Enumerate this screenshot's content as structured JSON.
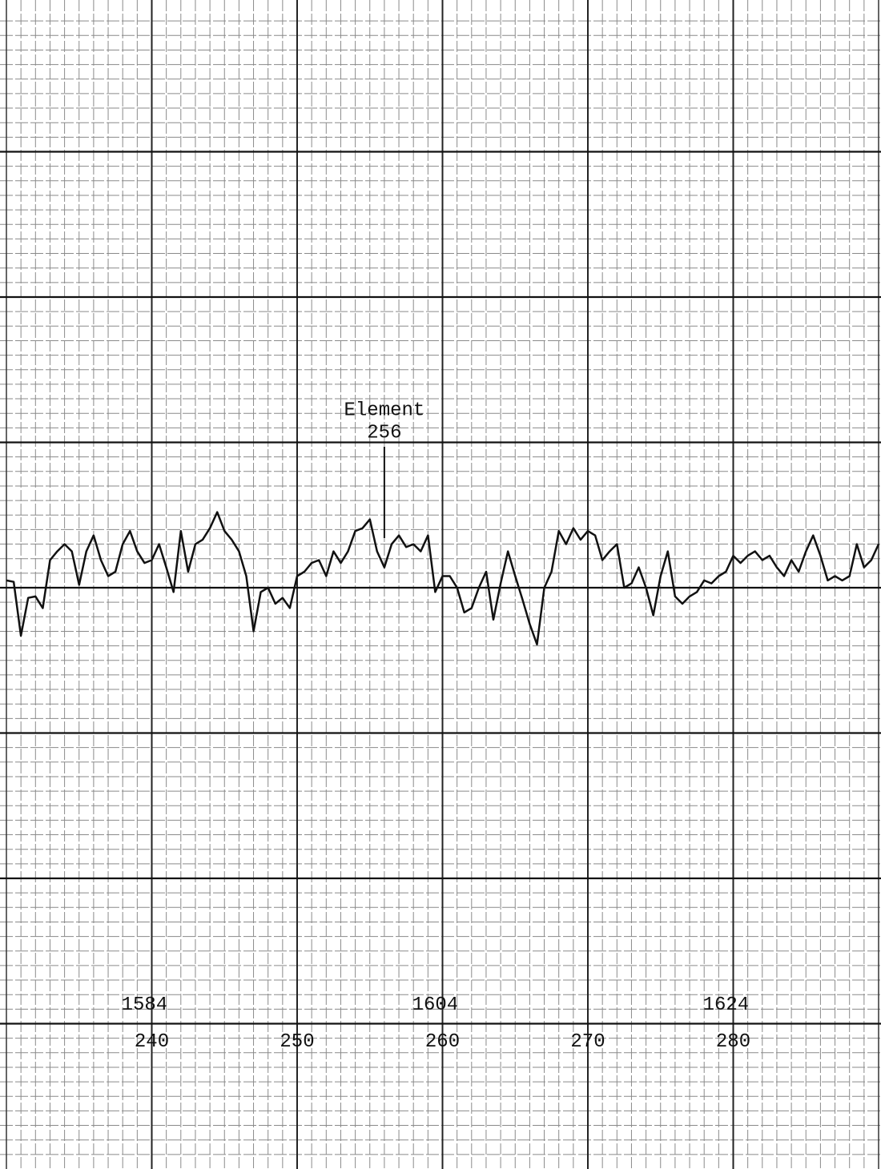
{
  "chart_data": {
    "type": "line",
    "annotation": {
      "text": [
        "Element",
        "256"
      ],
      "x": 256
    },
    "x": [
      230,
      230.5,
      231,
      231.5,
      232,
      232.5,
      233,
      233.5,
      234,
      234.5,
      235,
      235.5,
      236,
      236.5,
      237,
      237.5,
      238,
      238.5,
      239,
      239.5,
      240,
      240.5,
      241,
      241.5,
      242,
      242.5,
      243,
      243.5,
      244,
      244.5,
      245,
      245.5,
      246,
      246.5,
      247,
      247.5,
      248,
      248.5,
      249,
      249.5,
      250,
      250.5,
      251,
      251.5,
      252,
      252.5,
      253,
      253.5,
      254,
      254.5,
      255,
      255.5,
      256,
      256.5,
      257,
      257.5,
      258,
      258.5,
      259,
      259.5,
      260,
      260.5,
      261,
      261.5,
      262,
      262.5,
      263,
      263.5,
      264,
      264.5,
      265,
      265.5,
      266,
      266.5,
      267,
      267.5,
      268,
      268.5,
      269,
      269.5,
      270,
      270.5,
      271,
      271.5,
      272,
      272.5,
      273,
      273.5,
      274,
      274.5,
      275,
      275.5,
      276,
      276.5,
      277,
      277.5,
      278,
      278.5,
      279,
      279.5,
      280,
      280.5,
      281,
      281.5,
      282,
      282.5,
      283,
      283.5,
      284,
      284.5,
      285,
      285.5,
      286,
      286.5,
      287,
      287.5,
      288,
      288.5,
      289,
      289.5,
      290
    ],
    "values": [
      4.05,
      4.04,
      3.67,
      3.93,
      3.94,
      3.86,
      4.19,
      4.25,
      4.3,
      4.25,
      4.02,
      4.25,
      4.36,
      4.19,
      4.08,
      4.11,
      4.3,
      4.39,
      4.25,
      4.17,
      4.19,
      4.3,
      4.14,
      3.97,
      4.39,
      4.11,
      4.3,
      4.33,
      4.41,
      4.52,
      4.39,
      4.33,
      4.25,
      4.08,
      3.7,
      3.97,
      4.0,
      3.89,
      3.93,
      3.86,
      4.08,
      4.11,
      4.17,
      4.19,
      4.08,
      4.25,
      4.17,
      4.25,
      4.39,
      4.41,
      4.47,
      4.25,
      4.14,
      4.3,
      4.36,
      4.28,
      4.3,
      4.25,
      4.36,
      3.97,
      4.08,
      4.08,
      4.0,
      3.83,
      3.86,
      4.0,
      4.11,
      3.78,
      4.03,
      4.25,
      4.08,
      3.92,
      3.75,
      3.61,
      4.0,
      4.11,
      4.39,
      4.3,
      4.41,
      4.33,
      4.39,
      4.36,
      4.19,
      4.25,
      4.3,
      4.0,
      4.03,
      4.14,
      4.0,
      3.81,
      4.08,
      4.25,
      3.94,
      3.89,
      3.94,
      3.97,
      4.05,
      4.03,
      4.08,
      4.11,
      4.22,
      4.17,
      4.22,
      4.25,
      4.19,
      4.22,
      4.14,
      4.08,
      4.19,
      4.11,
      4.25,
      4.36,
      4.22,
      4.05,
      4.08,
      4.05,
      4.08,
      4.3,
      4.14,
      4.19,
      4.3
    ],
    "color": "#111111",
    "xlim": [
      230,
      290
    ],
    "xticks": [
      240,
      250,
      260,
      270,
      280
    ],
    "x2lim": [
      1574.5,
      1634.5
    ],
    "x2ticks": [
      1584,
      1604,
      1624
    ],
    "ylim": [
      0,
      8
    ],
    "yticks": [
      1,
      2,
      3,
      4,
      5,
      6,
      7
    ],
    "grid": true
  }
}
